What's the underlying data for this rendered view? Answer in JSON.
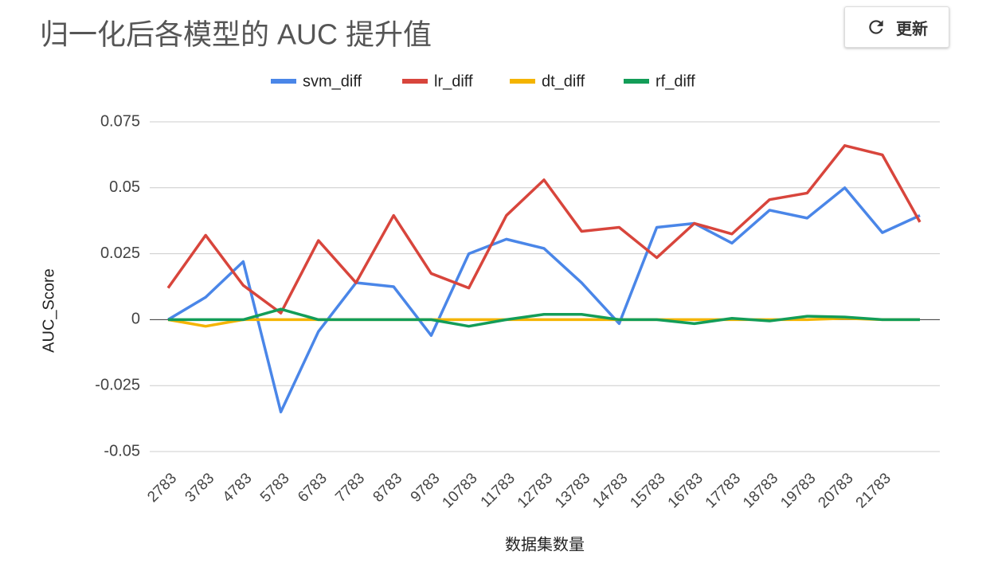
{
  "chart_data": {
    "type": "line",
    "title": "归一化后各模型的 AUC 提升值",
    "x_label": "数据集数量",
    "y_label": "AUC_Score",
    "categories": [
      "2783",
      "3783",
      "4783",
      "5783",
      "6783",
      "7783",
      "8783",
      "9783",
      "10783",
      "11783",
      "12783",
      "13783",
      "14783",
      "15783",
      "16783",
      "17783",
      "18783",
      "19783",
      "20783",
      "21783",
      null
    ],
    "series": [
      {
        "name": "svm_diff",
        "color": "#4a86e8",
        "values": [
          0,
          0.0085,
          0.022,
          -0.035,
          -0.0045,
          0.014,
          0.0125,
          -0.006,
          0.025,
          0.0305,
          0.027,
          0.014,
          -0.0015,
          0.035,
          0.0365,
          0.029,
          0.0415,
          0.0385,
          0.05,
          0.033,
          0.0395
        ]
      },
      {
        "name": "lr_diff",
        "color": "#d8453c",
        "values": [
          0.012,
          0.032,
          0.013,
          0.0025,
          0.03,
          0.014,
          0.0395,
          0.0175,
          0.012,
          0.0395,
          0.053,
          0.0335,
          0.035,
          0.0235,
          0.0365,
          0.0325,
          0.0455,
          0.048,
          0.066,
          0.0625,
          0.037
        ]
      },
      {
        "name": "dt_diff",
        "color": "#f4b400",
        "values": [
          0,
          -0.0025,
          0,
          0,
          0,
          0,
          0,
          0,
          0,
          0,
          0,
          0,
          0,
          0,
          0,
          0,
          0,
          0,
          0.0005,
          0,
          0
        ]
      },
      {
        "name": "rf_diff",
        "color": "#139d58",
        "values": [
          0,
          0,
          0,
          0.004,
          0,
          0,
          0,
          0,
          -0.0025,
          0,
          0.002,
          0.002,
          0,
          0,
          -0.0015,
          0.0005,
          -0.0005,
          0.0013,
          0.001,
          0,
          0
        ]
      }
    ],
    "ylim": [
      -0.05,
      0.075
    ],
    "yticks": [
      0.075,
      0.05,
      0.025,
      0,
      -0.025,
      -0.05
    ],
    "grid": true,
    "legend": "top"
  },
  "button": {
    "label": "更新"
  }
}
